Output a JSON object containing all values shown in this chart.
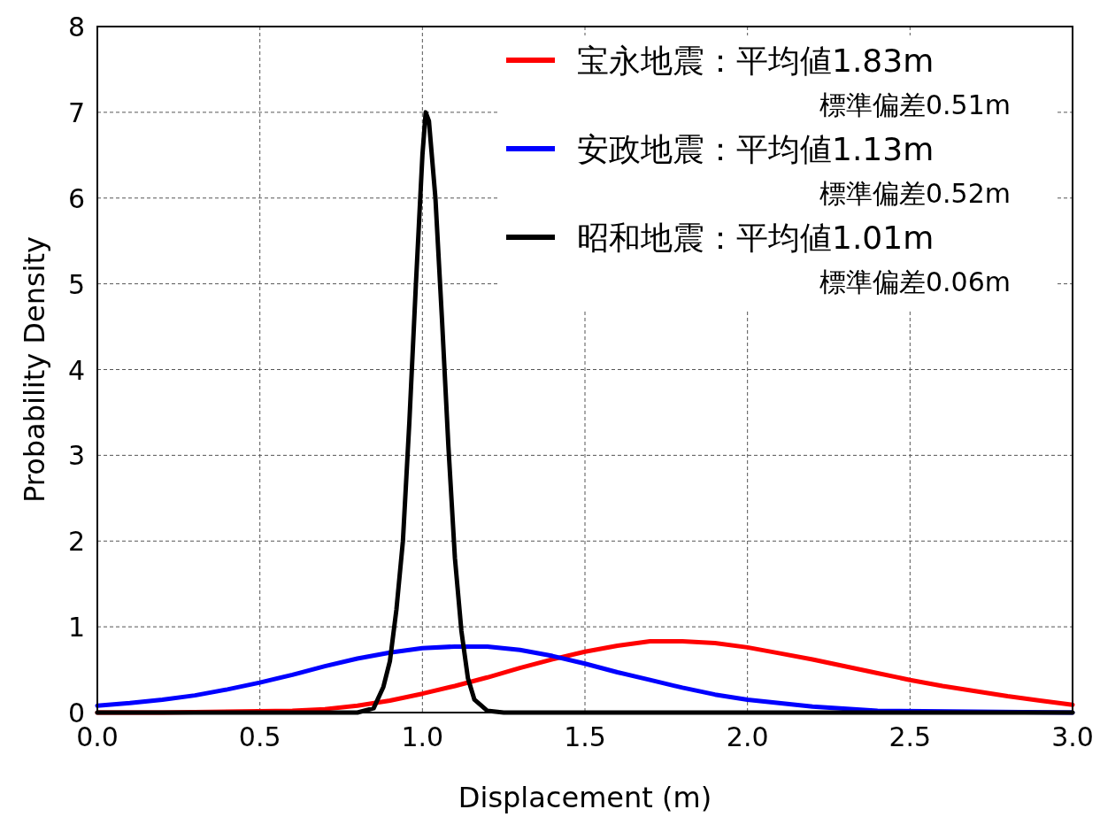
{
  "chart_data": {
    "type": "line",
    "xlabel": "Displacement (m)",
    "ylabel": "Probability Density",
    "xlim": [
      0,
      3
    ],
    "ylim": [
      0,
      8
    ],
    "xticks": [
      {
        "value": 0,
        "label": "0.0"
      },
      {
        "value": 0.5,
        "label": "0.5"
      },
      {
        "value": 1,
        "label": "1.0"
      },
      {
        "value": 1.5,
        "label": "1.5"
      },
      {
        "value": 2,
        "label": "2.0"
      },
      {
        "value": 2.5,
        "label": "2.5"
      },
      {
        "value": 3,
        "label": "3.0"
      }
    ],
    "yticks": [
      0,
      1,
      2,
      3,
      4,
      5,
      6,
      7,
      8
    ],
    "grid": true,
    "legend": "top right",
    "marker": "none",
    "line_style": "solid",
    "series": [
      {
        "name": "宝永地震：平均値1.83m\n標準偏差0.51m",
        "color": "#ff0000",
        "x": [
          0,
          0.2,
          0.6,
          0.7,
          0.8,
          0.9,
          1.0,
          1.1,
          1.2,
          1.3,
          1.4,
          1.5,
          1.6,
          1.7,
          1.8,
          1.9,
          2.0,
          2.1,
          2.2,
          2.3,
          2.4,
          2.5,
          2.6,
          2.7,
          2.8,
          2.9,
          3.0
        ],
        "values": [
          0,
          0,
          0.02,
          0.04,
          0.08,
          0.14,
          0.22,
          0.31,
          0.41,
          0.52,
          0.62,
          0.71,
          0.78,
          0.83,
          0.83,
          0.81,
          0.76,
          0.69,
          0.62,
          0.54,
          0.46,
          0.38,
          0.31,
          0.25,
          0.19,
          0.14,
          0.09
        ]
      },
      {
        "name": "安政地震：平均値1.13m\n標準偏差0.52m",
        "color": "#0000ff",
        "x": [
          0,
          0.1,
          0.2,
          0.3,
          0.4,
          0.5,
          0.6,
          0.7,
          0.8,
          0.9,
          1.0,
          1.1,
          1.2,
          1.3,
          1.4,
          1.5,
          1.6,
          1.7,
          1.8,
          1.9,
          2.0,
          2.2,
          2.4,
          3.0
        ],
        "values": [
          0.08,
          0.11,
          0.15,
          0.2,
          0.27,
          0.35,
          0.44,
          0.54,
          0.63,
          0.7,
          0.75,
          0.77,
          0.77,
          0.73,
          0.66,
          0.57,
          0.47,
          0.38,
          0.29,
          0.21,
          0.15,
          0.07,
          0.02,
          0
        ]
      },
      {
        "name": "昭和地震：平均値1.01m\n標準偏差0.06m",
        "color": "#000000",
        "x": [
          0,
          0.8,
          0.85,
          0.88,
          0.9,
          0.92,
          0.94,
          0.96,
          0.98,
          1.0,
          1.01,
          1.02,
          1.04,
          1.06,
          1.08,
          1.1,
          1.12,
          1.14,
          1.16,
          1.2,
          1.25,
          3.0
        ],
        "values": [
          0,
          0,
          0.05,
          0.3,
          0.6,
          1.2,
          2.0,
          3.4,
          5.0,
          6.5,
          7.0,
          6.9,
          6.0,
          4.6,
          3.1,
          1.8,
          0.95,
          0.4,
          0.15,
          0.02,
          0,
          0
        ]
      }
    ]
  }
}
